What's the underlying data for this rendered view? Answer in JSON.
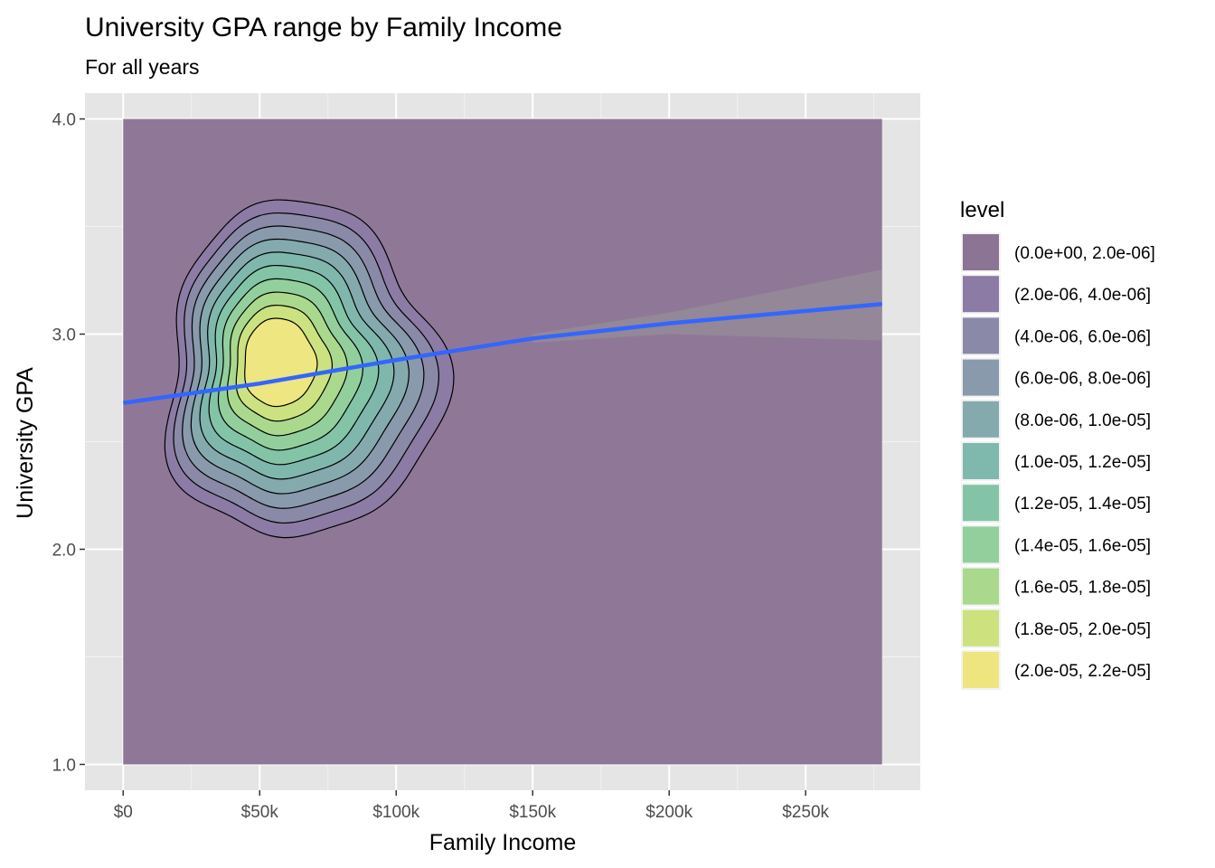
{
  "chart_data": {
    "type": "density_contour",
    "title": "University GPA range by Family Income",
    "subtitle": "For all years",
    "xlabel": "Family Income",
    "ylabel": "University GPA",
    "xlim": [
      -14000,
      292000
    ],
    "ylim": [
      0.88,
      4.12
    ],
    "x_ticks": [
      {
        "value": 0,
        "label": "$0"
      },
      {
        "value": 50000,
        "label": "$50k"
      },
      {
        "value": 100000,
        "label": "$100k"
      },
      {
        "value": 150000,
        "label": "$150k"
      },
      {
        "value": 200000,
        "label": "$200k"
      },
      {
        "value": 250000,
        "label": "$250k"
      }
    ],
    "y_ticks": [
      {
        "value": 1.0,
        "label": "1.0"
      },
      {
        "value": 2.0,
        "label": "2.0"
      },
      {
        "value": 3.0,
        "label": "3.0"
      },
      {
        "value": 4.0,
        "label": "4.0"
      }
    ],
    "density_region": {
      "x_min": 0,
      "x_max": 278000,
      "y_min": 1.0,
      "y_max": 4.0
    },
    "density_peak": {
      "x": 59000,
      "y": 2.82
    },
    "legend": {
      "title": "level",
      "position": "right",
      "items": [
        {
          "label": "(0.0e+00, 2.0e-06]",
          "color": "#8b7494"
        },
        {
          "label": "(2.0e-06, 4.0e-06]",
          "color": "#8c7ba4"
        },
        {
          "label": "(4.0e-06, 6.0e-06]",
          "color": "#8a8aa8"
        },
        {
          "label": "(6.0e-06, 8.0e-06]",
          "color": "#889aab"
        },
        {
          "label": "(8.0e-06, 1.0e-05]",
          "color": "#84aaad"
        },
        {
          "label": "(1.0e-05, 1.2e-05]",
          "color": "#7fb8ac"
        },
        {
          "label": "(1.2e-05, 1.4e-05]",
          "color": "#83c4a6"
        },
        {
          "label": "(1.4e-05, 1.6e-05]",
          "color": "#93cf9c"
        },
        {
          "label": "(1.6e-05, 1.8e-05]",
          "color": "#aad98e"
        },
        {
          "label": "(1.8e-05, 2.0e-05]",
          "color": "#cde17f"
        },
        {
          "label": "(2.0e-05, 2.2e-05]",
          "color": "#efe57f"
        }
      ]
    },
    "trend_line": {
      "color": "#3366ff",
      "points": [
        [
          0,
          2.68
        ],
        [
          50000,
          2.77
        ],
        [
          100000,
          2.88
        ],
        [
          150000,
          2.98
        ],
        [
          200000,
          3.05
        ],
        [
          278000,
          3.14
        ]
      ],
      "ci_upper": [
        [
          150000,
          3.0
        ],
        [
          200000,
          3.1
        ],
        [
          278000,
          3.3
        ]
      ],
      "ci_lower": [
        [
          150000,
          2.96
        ],
        [
          200000,
          3.0
        ],
        [
          278000,
          2.97
        ]
      ]
    },
    "grid": true,
    "panel_color": "#e5e5e5"
  }
}
